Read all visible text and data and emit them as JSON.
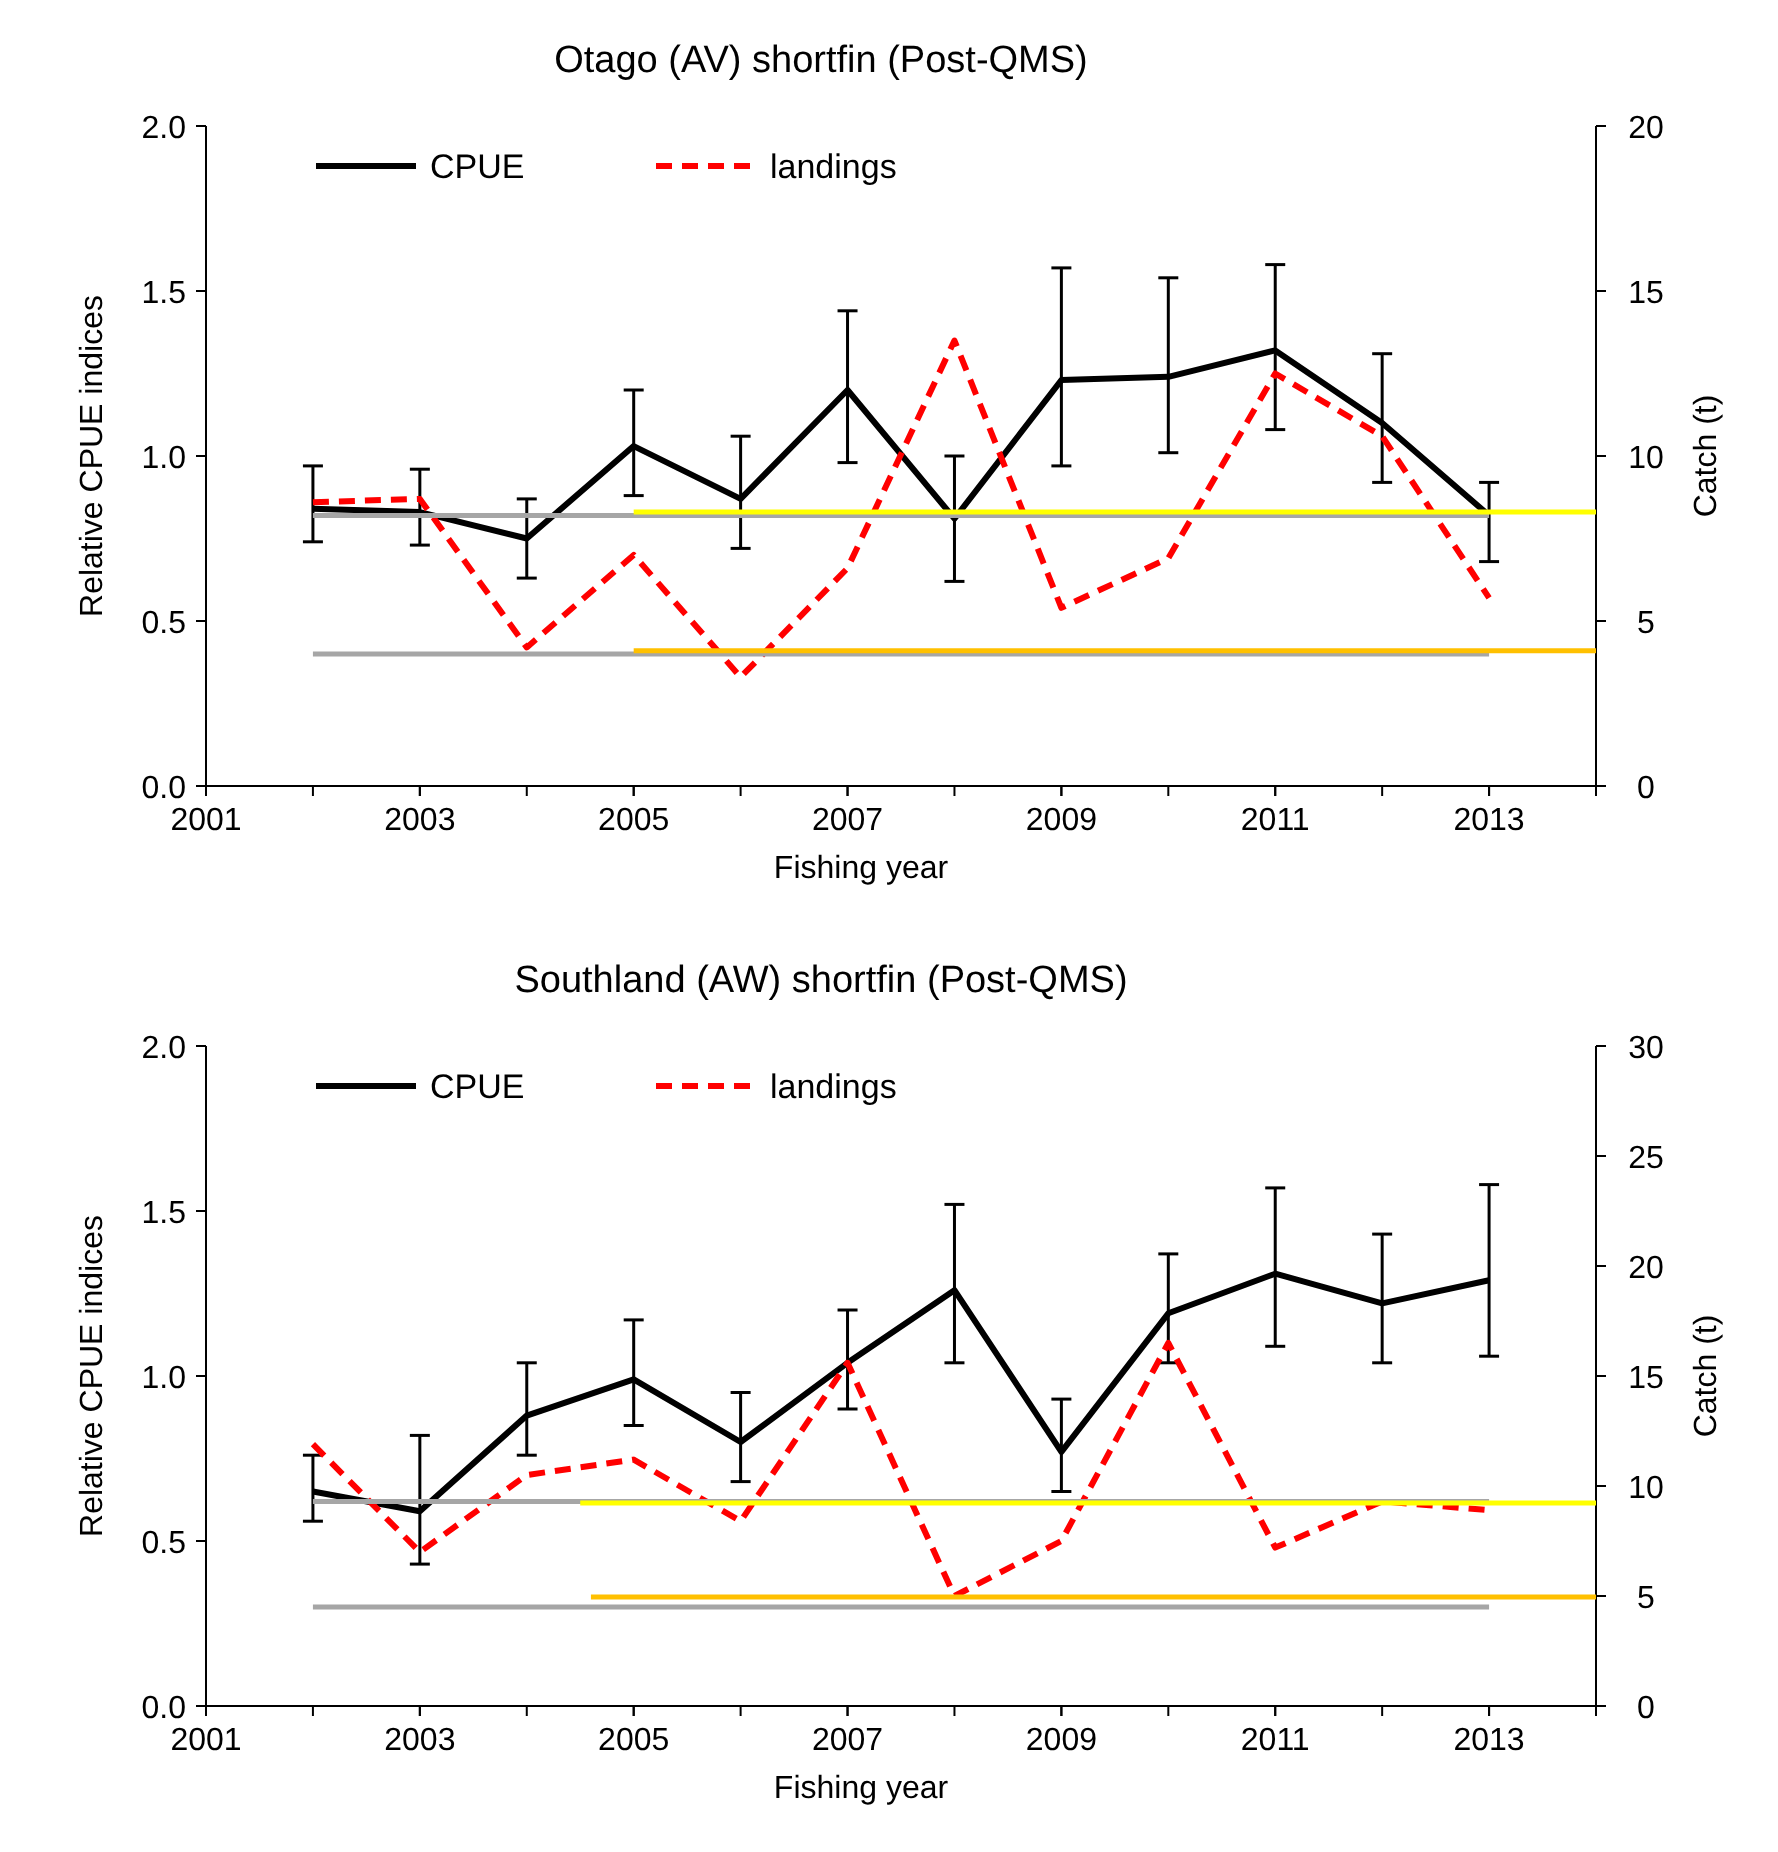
{
  "chart_data": [
    {
      "type": "line",
      "title": "Otago (AV) shortfin (Post-QMS)",
      "xlabel": "Fishing year",
      "ylabel": "Relative CPUE indices",
      "y2label": "Catch (t)",
      "xlim": [
        2001,
        2014
      ],
      "xticks": [
        2001,
        2003,
        2005,
        2007,
        2009,
        2011,
        2013
      ],
      "ylim": [
        0,
        2
      ],
      "yticks": [
        {
          "value": 0,
          "label": "0.0"
        },
        {
          "value": 0.5,
          "label": "0.5"
        },
        {
          "value": 1,
          "label": "1.0"
        },
        {
          "value": 1.5,
          "label": "1.5"
        },
        {
          "value": 2,
          "label": "2.0"
        }
      ],
      "y2lim": [
        0,
        20
      ],
      "y2ticks": [
        0,
        5,
        10,
        15,
        20
      ],
      "legend": "top left",
      "grid": false,
      "x": [
        2002,
        2003,
        2004,
        2005,
        2006,
        2007,
        2008,
        2009,
        2010,
        2011,
        2012,
        2013
      ],
      "series": [
        {
          "name": "CPUE",
          "color": "#000000",
          "line_style": "solid",
          "values": [
            0.84,
            0.83,
            0.75,
            1.03,
            0.87,
            1.2,
            0.81,
            1.23,
            1.24,
            1.32,
            1.1,
            0.82
          ],
          "errors": [
            [
              0.74,
              0.97
            ],
            [
              0.73,
              0.96
            ],
            [
              0.63,
              0.87
            ],
            [
              0.88,
              1.2
            ],
            [
              0.72,
              1.06
            ],
            [
              0.98,
              1.44
            ],
            [
              0.62,
              1.0
            ],
            [
              0.97,
              1.57
            ],
            [
              1.01,
              1.54
            ],
            [
              1.08,
              1.58
            ],
            [
              0.92,
              1.31
            ],
            [
              0.68,
              0.92
            ]
          ]
        },
        {
          "name": "landings",
          "color": "#ff0000",
          "line_style": "dashed",
          "axis": "y2",
          "values": [
            8.6,
            8.7,
            4.2,
            7.0,
            3.3,
            6.6,
            13.5,
            5.4,
            6.9,
            12.5,
            10.6,
            5.7
          ]
        },
        {
          "color": "#a6a6a6",
          "line_style": "solid",
          "x": [
            2002,
            2013
          ],
          "values": [
            0.82,
            0.82
          ]
        },
        {
          "color": "#a6a6a6",
          "line_style": "solid",
          "x": [
            2002,
            2013
          ],
          "values": [
            0.4,
            0.4
          ]
        },
        {
          "color": "#ffff00",
          "line_style": "solid",
          "x": [
            2005,
            2014
          ],
          "values": [
            0.83,
            0.83
          ]
        },
        {
          "color": "#ffc000",
          "line_style": "solid",
          "x": [
            2005,
            2014
          ],
          "values": [
            0.41,
            0.41
          ]
        }
      ]
    },
    {
      "type": "line",
      "title": "Southland (AW) shortfin (Post-QMS)",
      "xlabel": "Fishing year",
      "ylabel": "Relative CPUE indices",
      "y2label": "Catch (t)",
      "xlim": [
        2001,
        2014
      ],
      "xticks": [
        2001,
        2003,
        2005,
        2007,
        2009,
        2011,
        2013
      ],
      "ylim": [
        0,
        2
      ],
      "yticks": [
        {
          "value": 0,
          "label": "0.0"
        },
        {
          "value": 0.5,
          "label": "0.5"
        },
        {
          "value": 1,
          "label": "1.0"
        },
        {
          "value": 1.5,
          "label": "1.5"
        },
        {
          "value": 2,
          "label": "2.0"
        }
      ],
      "y2lim": [
        0,
        30
      ],
      "y2ticks": [
        0,
        5,
        10,
        15,
        20,
        25,
        30
      ],
      "legend": "top left",
      "grid": false,
      "x": [
        2002,
        2003,
        2004,
        2005,
        2006,
        2007,
        2008,
        2009,
        2010,
        2011,
        2012,
        2013
      ],
      "series": [
        {
          "name": "CPUE",
          "color": "#000000",
          "line_style": "solid",
          "values": [
            0.65,
            0.59,
            0.88,
            0.99,
            0.8,
            1.04,
            1.26,
            0.77,
            1.19,
            1.31,
            1.22,
            1.29
          ],
          "errors": [
            [
              0.56,
              0.76
            ],
            [
              0.43,
              0.82
            ],
            [
              0.76,
              1.04
            ],
            [
              0.85,
              1.17
            ],
            [
              0.68,
              0.95
            ],
            [
              0.9,
              1.2
            ],
            [
              1.04,
              1.52
            ],
            [
              0.65,
              0.93
            ],
            [
              1.04,
              1.37
            ],
            [
              1.09,
              1.57
            ],
            [
              1.04,
              1.43
            ],
            [
              1.06,
              1.58
            ]
          ]
        },
        {
          "name": "landings",
          "color": "#ff0000",
          "line_style": "dashed",
          "axis": "y2",
          "values": [
            11.9,
            7.0,
            10.5,
            11.2,
            8.4,
            15.6,
            5.0,
            7.5,
            16.5,
            7.2,
            9.3,
            8.9
          ]
        },
        {
          "color": "#a6a6a6",
          "line_style": "solid",
          "x": [
            2002,
            2013
          ],
          "values": [
            0.62,
            0.62
          ]
        },
        {
          "color": "#a6a6a6",
          "line_style": "solid",
          "x": [
            2002,
            2013
          ],
          "values": [
            0.3,
            0.3
          ]
        },
        {
          "color": "#ffff00",
          "line_style": "solid",
          "x": [
            2004.5,
            2014
          ],
          "values": [
            0.615,
            0.615
          ]
        },
        {
          "color": "#ffc000",
          "line_style": "solid",
          "x": [
            2004.6,
            2014
          ],
          "values": [
            0.33,
            0.33
          ]
        }
      ]
    }
  ]
}
